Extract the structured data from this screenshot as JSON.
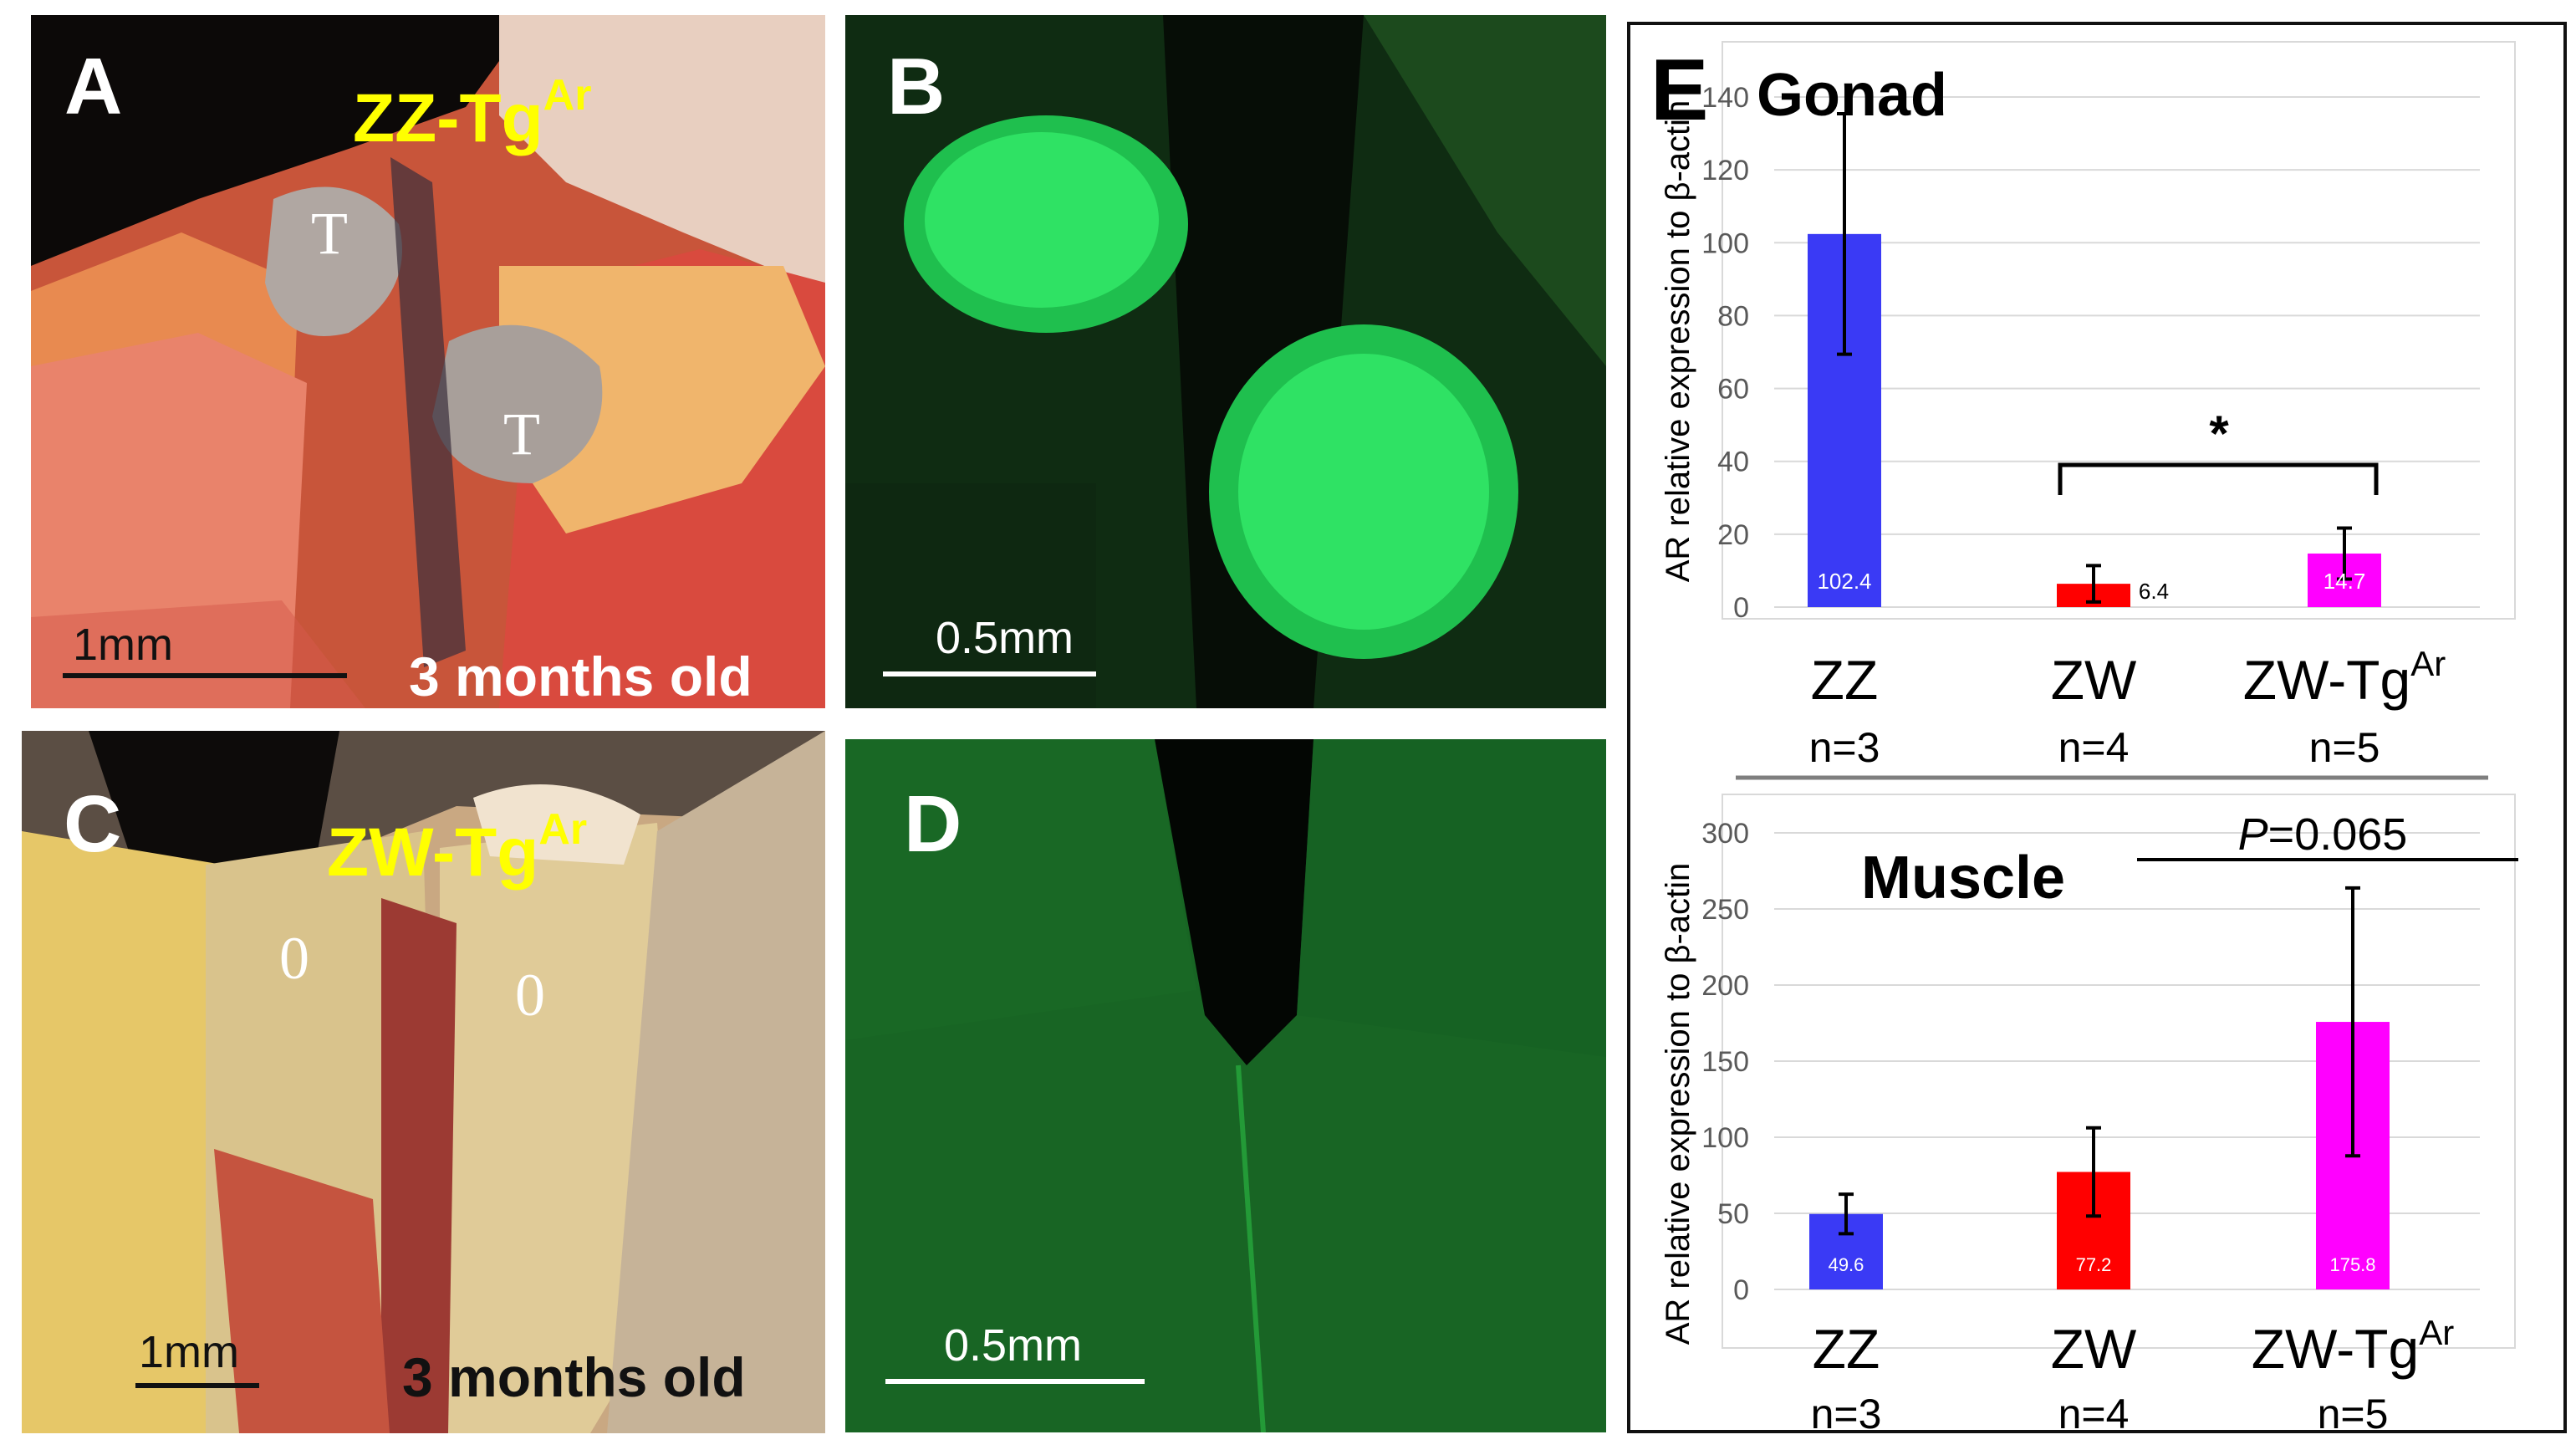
{
  "panels": {
    "a": {
      "letter": "A",
      "title_main": "ZZ-Tg",
      "title_sup": "Ar",
      "organ_label": "T",
      "scale": "1mm",
      "age": "3 months old"
    },
    "b": {
      "letter": "B",
      "scale": "0.5mm"
    },
    "c": {
      "letter": "C",
      "title_main": "ZW-Tg",
      "title_sup": "Ar",
      "organ_label": "0",
      "scale": "1mm",
      "age": "3 months old"
    },
    "d": {
      "letter": "D",
      "scale": "0.5mm"
    },
    "e": {
      "letter": "E"
    }
  },
  "colors": {
    "title_yellow": "#ffff00",
    "zz_blue": "#3a3af5",
    "zw_red": "#ff0000",
    "zwtg_magenta": "#ff00ff",
    "fluorescent_green": "#1fd65a"
  },
  "chart_data": [
    {
      "type": "bar",
      "title": "Gonad",
      "ylabel": "AR relative expression to β-actin",
      "ylim": [
        0,
        140
      ],
      "yticks": [
        0,
        20,
        40,
        60,
        80,
        100,
        120,
        140
      ],
      "categories": [
        "ZZ",
        "ZW",
        "ZW-Tg"
      ],
      "category_sup": [
        "",
        "",
        "Ar"
      ],
      "n_labels": [
        "n=3",
        "n=4",
        "n=5"
      ],
      "values": [
        102.4,
        6.4,
        14.7
      ],
      "value_labels": [
        "102.4",
        "6.4",
        "14.7"
      ],
      "errors": [
        33,
        5,
        7
      ],
      "colors": [
        "#3a3af5",
        "#ff0000",
        "#ff00ff"
      ],
      "grid": true,
      "annotation": {
        "text": "*",
        "between": [
          1,
          2
        ]
      }
    },
    {
      "type": "bar",
      "title": "Muscle",
      "ylabel": "AR relative expression to β-actin",
      "ylim": [
        0,
        300
      ],
      "yticks": [
        0,
        50,
        100,
        150,
        200,
        250,
        300
      ],
      "categories": [
        "ZZ",
        "ZW",
        "ZW-Tg"
      ],
      "category_sup": [
        "",
        "",
        "Ar"
      ],
      "n_labels": [
        "n=3",
        "n=4",
        "n=5"
      ],
      "values": [
        49.6,
        77.2,
        175.8
      ],
      "value_labels": [
        "49.6",
        "77.2",
        "175.8"
      ],
      "errors": [
        13,
        29,
        88
      ],
      "colors": [
        "#3a3af5",
        "#ff0000",
        "#ff00ff"
      ],
      "grid": true,
      "annotation": {
        "text_italic": "P",
        "text": "=0.065",
        "between": [
          1,
          2
        ]
      }
    }
  ]
}
